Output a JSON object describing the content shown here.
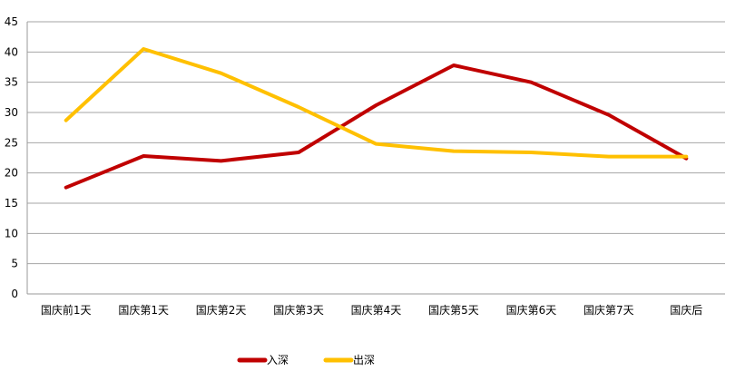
{
  "chart_data": {
    "type": "line",
    "title": "",
    "xlabel": "",
    "ylabel": "",
    "categories": [
      "国庆前1天",
      "国庆第1天",
      "国庆第2天",
      "国庆第3天",
      "国庆第4天",
      "国庆第5天",
      "国庆第6天",
      "国庆第7天",
      "国庆后"
    ],
    "ylim": [
      0,
      45
    ],
    "yticks": [
      0,
      5,
      10,
      15,
      20,
      25,
      30,
      35,
      40,
      45
    ],
    "grid": true,
    "legend_placement": "bottom",
    "series": [
      {
        "name": "入深",
        "color": "#C00000",
        "values": [
          17.6,
          22.8,
          22.0,
          23.4,
          31.2,
          37.8,
          35.0,
          29.6,
          22.4
        ]
      },
      {
        "name": "出深",
        "color": "#FFC000",
        "values": [
          28.7,
          40.5,
          36.5,
          30.9,
          24.8,
          23.6,
          23.4,
          22.7,
          22.7
        ]
      }
    ]
  }
}
